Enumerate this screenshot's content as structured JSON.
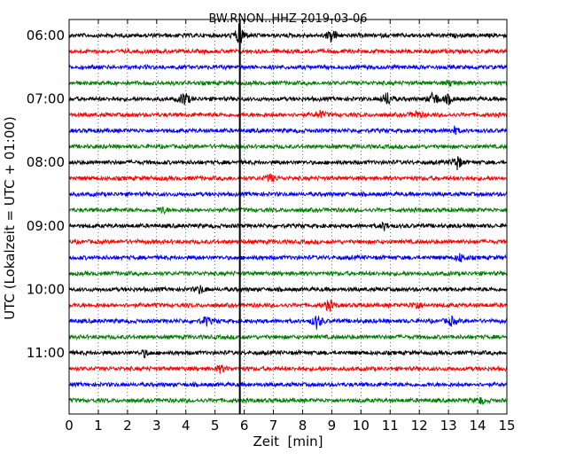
{
  "chart_data": {
    "type": "line",
    "title": "BW.RNON..HHZ 2019-03-06",
    "xlabel": "Zeit  [min]",
    "ylabel": "UTC (Lokalzeit = UTC + 01:00)",
    "xlim": [
      0,
      15
    ],
    "x_ticks": [
      "0",
      "1",
      "2",
      "3",
      "4",
      "5",
      "6",
      "7",
      "8",
      "9",
      "10",
      "11",
      "12",
      "13",
      "14",
      "15"
    ],
    "y_ticks": [
      "06:00",
      "07:00",
      "08:00",
      "09:00",
      "10:00",
      "11:00"
    ],
    "grid": true,
    "trace_colors": [
      "#000000",
      "#ff0000",
      "#0000ff",
      "#008000"
    ],
    "marker_line_minute": 5.85,
    "series": [
      {
        "start": "06:00",
        "events": [
          [
            5.85,
            0.95
          ],
          [
            9.0,
            0.55
          ]
        ]
      },
      {
        "start": "06:15",
        "events": []
      },
      {
        "start": "06:30",
        "events": []
      },
      {
        "start": "06:45",
        "events": [
          [
            13.1,
            0.25
          ]
        ]
      },
      {
        "start": "07:00",
        "events": [
          [
            3.95,
            0.6
          ],
          [
            10.9,
            0.55
          ],
          [
            12.5,
            0.6
          ],
          [
            13.0,
            0.35
          ]
        ]
      },
      {
        "start": "07:15",
        "events": [
          [
            8.6,
            0.3
          ],
          [
            11.9,
            0.3
          ]
        ]
      },
      {
        "start": "07:30",
        "events": [
          [
            13.2,
            0.25
          ]
        ]
      },
      {
        "start": "07:45",
        "events": []
      },
      {
        "start": "08:00",
        "events": [
          [
            13.3,
            0.55
          ]
        ]
      },
      {
        "start": "08:15",
        "events": [
          [
            6.9,
            0.3
          ]
        ]
      },
      {
        "start": "08:30",
        "events": []
      },
      {
        "start": "08:45",
        "events": [
          [
            3.2,
            0.25
          ]
        ]
      },
      {
        "start": "09:00",
        "events": [
          [
            10.8,
            0.25
          ]
        ]
      },
      {
        "start": "09:15",
        "events": []
      },
      {
        "start": "09:30",
        "events": [
          [
            13.4,
            0.3
          ]
        ]
      },
      {
        "start": "09:45",
        "events": []
      },
      {
        "start": "10:00",
        "events": [
          [
            4.5,
            0.3
          ]
        ]
      },
      {
        "start": "10:15",
        "events": [
          [
            8.9,
            0.45
          ],
          [
            11.9,
            0.3
          ]
        ]
      },
      {
        "start": "10:30",
        "events": [
          [
            4.7,
            0.35
          ],
          [
            8.5,
            0.55
          ],
          [
            13.1,
            0.3
          ]
        ]
      },
      {
        "start": "10:45",
        "events": []
      },
      {
        "start": "11:00",
        "events": [
          [
            2.6,
            0.25
          ]
        ]
      },
      {
        "start": "11:15",
        "events": [
          [
            5.2,
            0.3
          ]
        ]
      },
      {
        "start": "11:30",
        "events": []
      },
      {
        "start": "11:45",
        "events": [
          [
            14.1,
            0.25
          ]
        ]
      }
    ]
  }
}
